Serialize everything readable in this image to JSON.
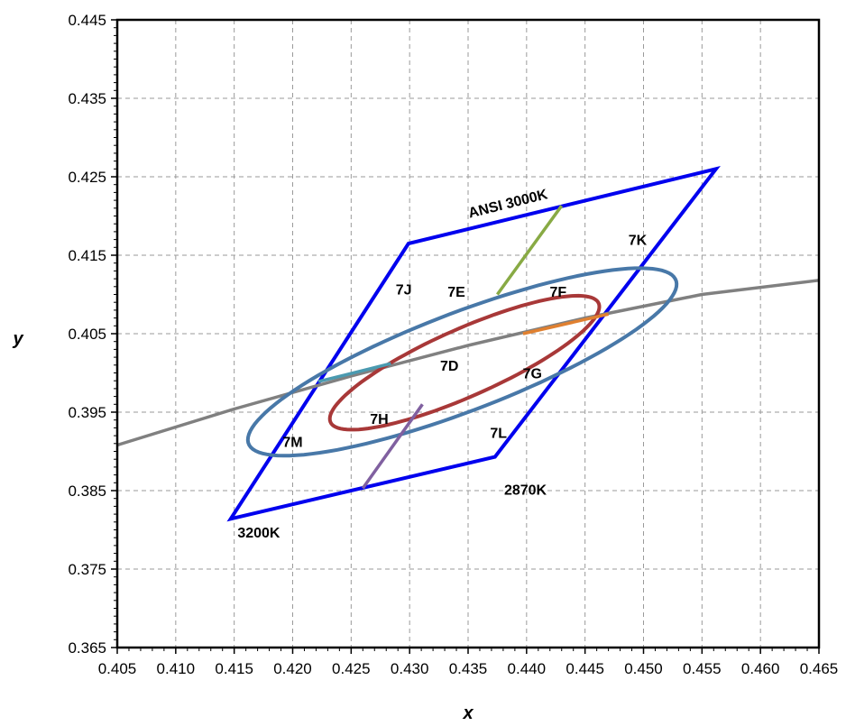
{
  "chart_data": {
    "type": "line",
    "title": "",
    "xlabel": "x",
    "ylabel": "y",
    "xlim": [
      0.405,
      0.465
    ],
    "ylim": [
      0.365,
      0.445
    ],
    "x_ticks": [
      0.405,
      0.41,
      0.415,
      0.42,
      0.425,
      0.43,
      0.435,
      0.44,
      0.445,
      0.45,
      0.455,
      0.46,
      0.465
    ],
    "x_tick_labels": [
      "0.405",
      "0.410",
      "0.415",
      "0.420",
      "0.425",
      "0.430",
      "0.435",
      "0.440",
      "0.445",
      "0.450",
      "0.455",
      "0.460",
      "0.465"
    ],
    "y_ticks": [
      0.365,
      0.375,
      0.385,
      0.395,
      0.405,
      0.415,
      0.425,
      0.435,
      0.445
    ],
    "y_tick_labels": [
      "0.365",
      "0.375",
      "0.385",
      "0.395",
      "0.405",
      "0.415",
      "0.425",
      "0.435",
      "0.445"
    ],
    "grid": true,
    "series": [
      {
        "color": "#0000ee",
        "closed": true,
        "x": [
          0.4147,
          0.4373,
          0.4562,
          0.4299
        ],
        "y": [
          0.3814,
          0.3893,
          0.426,
          0.4165
        ]
      },
      {
        "color": "#808080",
        "x": [
          0.405,
          0.415,
          0.425,
          0.435,
          0.445,
          0.455,
          0.465
        ],
        "y": [
          0.3908,
          0.3954,
          0.3996,
          0.4035,
          0.407,
          0.41,
          0.4118
        ]
      },
      {
        "color": "#4878a8",
        "type": "ellipse",
        "center": [
          0.4345,
          0.4014
        ],
        "semi_axes": [
          0.0211,
          0.0058
        ],
        "rotation_deg": 31
      },
      {
        "color": "#a83838",
        "type": "ellipse",
        "center": [
          0.4347,
          0.4013
        ],
        "semi_axes": [
          0.0138,
          0.0039
        ],
        "rotation_deg": 35
      },
      {
        "color": "#88aa44",
        "x": [
          0.4375,
          0.443
        ],
        "y": [
          0.41,
          0.4213
        ]
      },
      {
        "color": "#e08030",
        "x": [
          0.4397,
          0.447
        ],
        "y": [
          0.405,
          0.4075
        ]
      },
      {
        "color": "#4a9ab0",
        "x": [
          0.4222,
          0.4284
        ],
        "y": [
          0.3989,
          0.4012
        ]
      },
      {
        "color": "#8060a0",
        "x": [
          0.426,
          0.4311
        ],
        "y": [
          0.3853,
          0.396
        ]
      }
    ],
    "annotations": [
      {
        "text": "ANSI 3000K",
        "x": 0.4385,
        "y": 0.421,
        "rotate": -14
      },
      {
        "text": "7K",
        "x": 0.4495,
        "y": 0.4163
      },
      {
        "text": "7J",
        "x": 0.4295,
        "y": 0.41
      },
      {
        "text": "7E",
        "x": 0.434,
        "y": 0.4097
      },
      {
        "text": "7F",
        "x": 0.4427,
        "y": 0.4097
      },
      {
        "text": "7D",
        "x": 0.4334,
        "y": 0.4003
      },
      {
        "text": "7G",
        "x": 0.4405,
        "y": 0.3993
      },
      {
        "text": "7H",
        "x": 0.4274,
        "y": 0.3935
      },
      {
        "text": "7L",
        "x": 0.4376,
        "y": 0.3917
      },
      {
        "text": "7M",
        "x": 0.42,
        "y": 0.3906
      },
      {
        "text": "2870K",
        "x": 0.4399,
        "y": 0.3845
      },
      {
        "text": "3200K",
        "x": 0.4171,
        "y": 0.379
      }
    ]
  }
}
